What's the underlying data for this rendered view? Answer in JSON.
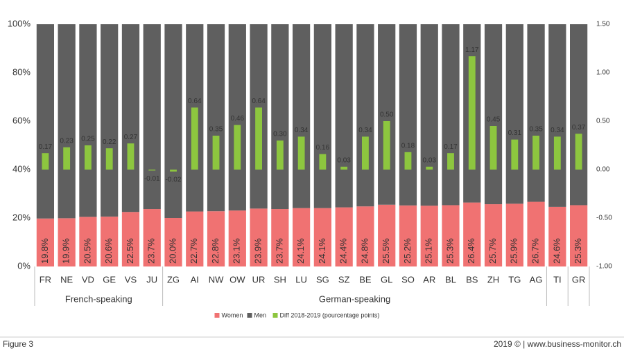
{
  "chart_data": {
    "type": "bar",
    "categories": [
      "FR",
      "NE",
      "VD",
      "GE",
      "VS",
      "JU",
      "ZG",
      "AI",
      "NW",
      "OW",
      "UR",
      "SH",
      "LU",
      "SG",
      "SZ",
      "BE",
      "GL",
      "SO",
      "AR",
      "BL",
      "BS",
      "ZH",
      "TG",
      "AG",
      "TI",
      "GR"
    ],
    "groups": [
      {
        "label": "French-speaking",
        "span": 6
      },
      {
        "label": "German-speaking",
        "span": 18
      },
      {
        "label": null,
        "span": 1
      },
      {
        "label": null,
        "span": 1
      }
    ],
    "series": [
      {
        "name": "Women",
        "color": "#f07272",
        "values": [
          19.8,
          19.9,
          20.5,
          20.6,
          22.5,
          23.7,
          20.0,
          22.7,
          22.8,
          23.1,
          23.9,
          23.7,
          24.1,
          24.1,
          24.4,
          24.8,
          25.5,
          25.2,
          25.1,
          25.3,
          26.4,
          25.7,
          25.9,
          26.7,
          24.6,
          25.3
        ],
        "value_labels": [
          "19.8%",
          "19.9%",
          "20.5%",
          "20.6%",
          "22.5%",
          "23.7%",
          "20.0%",
          "22.7%",
          "22.8%",
          "23.1%",
          "23.9%",
          "23.7%",
          "24.1%",
          "24.1%",
          "24.4%",
          "24.8%",
          "25.5%",
          "25.2%",
          "25.1%",
          "25.3%",
          "26.4%",
          "25.7%",
          "25.9%",
          "26.7%",
          "24.6%",
          "25.3%"
        ]
      },
      {
        "name": "Men",
        "color": "#5f5f5f",
        "values": [
          80.2,
          80.1,
          79.5,
          79.4,
          77.5,
          76.3,
          80.0,
          77.3,
          77.2,
          76.9,
          76.1,
          76.3,
          75.9,
          75.9,
          75.6,
          75.2,
          74.5,
          74.8,
          74.9,
          74.7,
          73.6,
          74.3,
          74.1,
          73.3,
          75.4,
          74.7
        ]
      },
      {
        "name": "Diff 2018-2019 (pourcentage points)",
        "color": "#8dc63f",
        "axis": "y2",
        "values": [
          0.17,
          0.23,
          0.25,
          0.22,
          0.27,
          -0.01,
          -0.02,
          0.64,
          0.35,
          0.46,
          0.64,
          0.3,
          0.34,
          0.16,
          0.03,
          0.34,
          0.5,
          0.18,
          0.03,
          0.17,
          1.17,
          0.45,
          0.31,
          0.35,
          0.34,
          0.37
        ],
        "value_labels": [
          "0.17",
          "0.23",
          "0.25",
          "0.22",
          "0.27",
          "-0.01",
          "-0.02",
          "0.64",
          "0.35",
          "0.46",
          "0.64",
          "0.30",
          "0.34",
          "0.16",
          "0.03",
          "0.34",
          "0.50",
          "0.18",
          "0.03",
          "0.17",
          "1.17",
          "0.45",
          "0.31",
          "0.35",
          "0.34",
          "0.37"
        ]
      }
    ],
    "ylim": [
      0,
      100
    ],
    "yticks": [
      {
        "value": 0,
        "label": "0%"
      },
      {
        "value": 20,
        "label": "20%"
      },
      {
        "value": 40,
        "label": "40%"
      },
      {
        "value": 60,
        "label": "60%"
      },
      {
        "value": 80,
        "label": "80%"
      },
      {
        "value": 100,
        "label": "100%"
      }
    ],
    "y2lim": [
      -1,
      1.5
    ],
    "y2ticks": [
      {
        "value": -1,
        "label": "-1.00"
      },
      {
        "value": -0.5,
        "label": "-0.50"
      },
      {
        "value": 0,
        "label": "0.00"
      },
      {
        "value": 0.5,
        "label": "0.50"
      },
      {
        "value": 1,
        "label": "1.00"
      },
      {
        "value": 1.5,
        "label": "1.50"
      }
    ],
    "legend": "bottom"
  },
  "footer": {
    "left": "Figure 3",
    "right": "2019 © | www.business-monitor.ch"
  }
}
